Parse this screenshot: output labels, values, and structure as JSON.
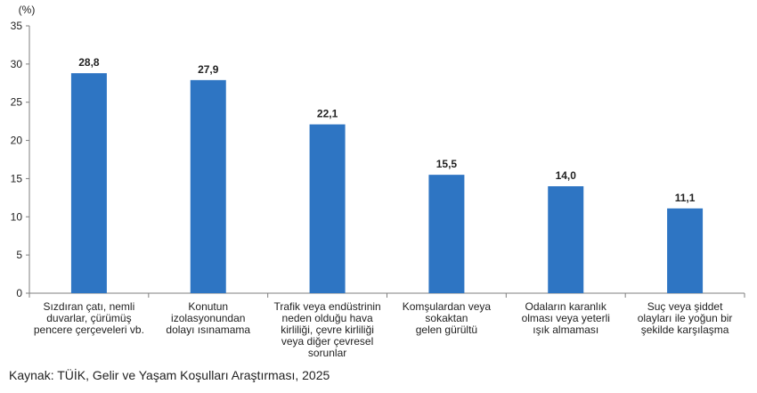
{
  "chart_data": {
    "type": "bar",
    "title": "",
    "unit_label": "(%)",
    "xlabel": "",
    "ylabel": "",
    "ylim": [
      0,
      35
    ],
    "yticks": [
      0,
      5,
      10,
      15,
      20,
      25,
      30,
      35
    ],
    "grid": false,
    "bar_color": "#2E75C3",
    "categories": [
      [
        "Sızdıran çatı, nemli",
        "duvarlar, çürümüş",
        "pencere çerçeveleri vb."
      ],
      [
        "Konutun",
        "izolasyonundan",
        "dolayı ısınamama"
      ],
      [
        "Trafik veya endüstrinin",
        "neden olduğu hava",
        "kirliliği, çevre kirliliği",
        "veya diğer çevresel",
        "sorunlar"
      ],
      [
        "Komşulardan veya",
        "sokaktan",
        "gelen gürültü"
      ],
      [
        "Odaların karanlık",
        "olması veya yeterli",
        "ışık almaması"
      ],
      [
        "Suç veya şiddet",
        "olayları ile yoğun bir",
        "şekilde karşılaşma"
      ]
    ],
    "values": [
      28.8,
      27.9,
      22.1,
      15.5,
      14.0,
      11.1
    ],
    "value_labels": [
      "28,8",
      "27,9",
      "22,1",
      "15,5",
      "14,0",
      "11,1"
    ]
  },
  "source": "Kaynak: TÜİK, Gelir ve Yaşam Koşulları Araştırması, 2025"
}
